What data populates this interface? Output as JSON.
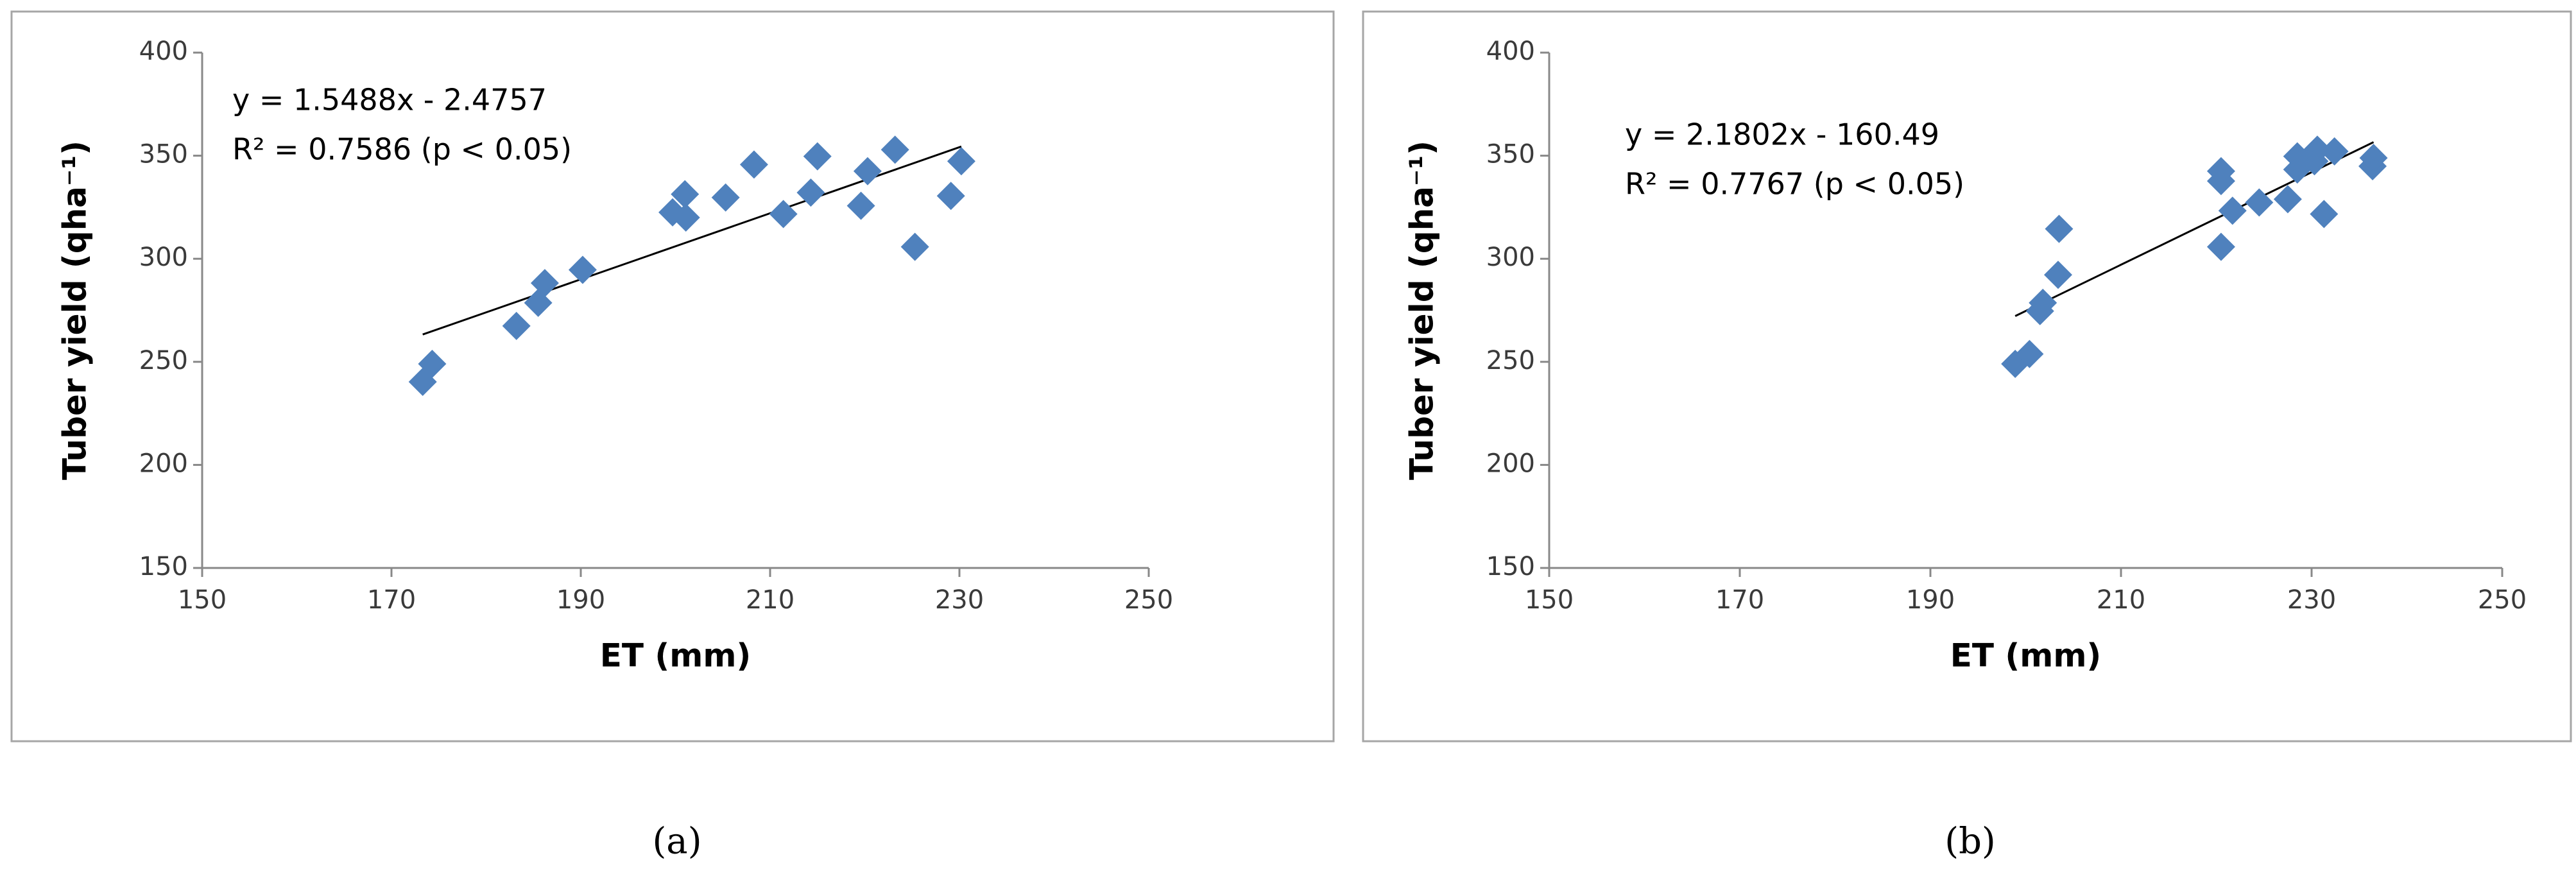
{
  "chart_data": [
    {
      "type": "scatter",
      "caption": "(a)",
      "xlabel": "ET (mm)",
      "ylabel": "Tuber yield (qha⁻¹)",
      "annotations": [
        "y = 1.5488x - 2.4757",
        "R² = 0.7586 (p < 0.05)"
      ],
      "color": "#4f81bd",
      "trendline": true,
      "x": [
        173.3,
        174.3,
        183.2,
        185.5,
        186.2,
        190.2,
        199.7,
        201.1,
        201.0,
        205.3,
        208.3,
        211.4,
        214.3,
        215.0,
        219.6,
        220.3,
        223.2,
        225.3,
        229.1,
        230.2
      ],
      "y": [
        240.3,
        249.0,
        267.4,
        278.6,
        288.2,
        294.6,
        322.5,
        320.0,
        331.3,
        329.7,
        345.7,
        321.7,
        332.1,
        349.7,
        325.7,
        342.5,
        352.9,
        305.8,
        330.5,
        347.3
      ],
      "xlim": [
        150,
        250
      ],
      "xticks": [
        150,
        170,
        190,
        210,
        230,
        250
      ],
      "ylim": [
        150,
        400
      ],
      "yticks": [
        150,
        200,
        250,
        300,
        350,
        400
      ]
    },
    {
      "type": "scatter",
      "caption": "(b)",
      "xlabel": "ET (mm)",
      "ylabel": "Tuber yield (qha⁻¹)",
      "annotations": [
        "y = 2.1802x - 160.49",
        "R² = 0.7767 (p < 0.05)"
      ],
      "color": "#4f81bd",
      "trendline": true,
      "x": [
        198.9,
        200.4,
        201.5,
        201.8,
        203.4,
        203.5,
        220.5,
        220.5,
        220.5,
        221.7,
        224.5,
        227.5,
        228.5,
        228.5,
        230.3,
        230.6,
        231.3,
        232.4,
        236.4,
        236.5
      ],
      "y": [
        249.0,
        253.8,
        274.6,
        278.6,
        292.2,
        314.5,
        342.5,
        337.7,
        305.8,
        323.3,
        327.3,
        328.9,
        349.7,
        343.3,
        347.3,
        352.9,
        321.7,
        352.1,
        344.9,
        348.9
      ],
      "xlim": [
        150,
        250
      ],
      "xticks": [
        150,
        170,
        190,
        210,
        230,
        250
      ],
      "ylim": [
        150,
        400
      ],
      "yticks": [
        150,
        200,
        250,
        300,
        350,
        400
      ]
    }
  ]
}
